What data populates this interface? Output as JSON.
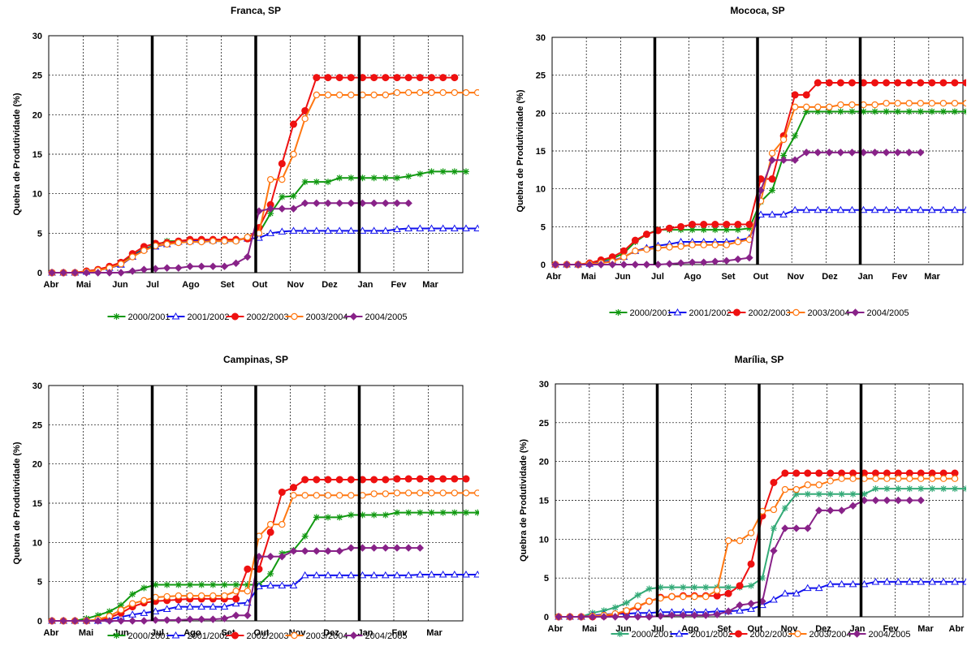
{
  "chart_data": [
    {
      "type": "line",
      "title": "Franca, SP",
      "ylabel": "Quebra de Produtividade (%)",
      "xlabel": "",
      "ylim": [
        0,
        30
      ],
      "yticks": [
        "0",
        "5",
        "10",
        "15",
        "20",
        "25",
        "30"
      ],
      "x_tick_labels": [
        "Abr",
        "Mai",
        "Jun",
        "Jul",
        "Ago",
        "Set",
        "Out",
        "Nov",
        "Dez",
        "Jan",
        "Fev",
        "Mar"
      ],
      "grid": true,
      "legend": "bottom",
      "vlines_month": [
        3,
        6,
        9
      ],
      "series": [
        {
          "name": "2000/2001",
          "color": "#119911",
          "marker": "star",
          "values": [
            0,
            0,
            0,
            0.2,
            0.4,
            0.7,
            1.2,
            2.2,
            3.0,
            3.5,
            4.0,
            4.0,
            4.0,
            4.0,
            4.0,
            4.0,
            4.0,
            4.5,
            5.0,
            7.5,
            9.6,
            9.7,
            11.5,
            11.5,
            11.5,
            12.0,
            12.0,
            12.0,
            12.0,
            12.0,
            12.0,
            12.2,
            12.5,
            12.8,
            12.8,
            12.8,
            12.8
          ]
        },
        {
          "name": "2001/2002",
          "color": "#1111ee",
          "marker": "triangle",
          "values": [
            0,
            0,
            0,
            0.1,
            0.3,
            0.6,
            1.0,
            2.0,
            3.0,
            3.3,
            3.6,
            3.9,
            4.0,
            4.1,
            4.1,
            4.1,
            4.2,
            4.3,
            4.4,
            5.0,
            5.2,
            5.3,
            5.3,
            5.3,
            5.3,
            5.3,
            5.3,
            5.3,
            5.3,
            5.3,
            5.5,
            5.6,
            5.6,
            5.6,
            5.6,
            5.6,
            5.6,
            5.6
          ]
        },
        {
          "name": "2002/2003",
          "color": "#ee1111",
          "marker": "circle",
          "values": [
            0,
            0,
            0,
            0.2,
            0.4,
            0.8,
            1.3,
            2.4,
            3.3,
            3.7,
            3.8,
            4.0,
            4.2,
            4.2,
            4.2,
            4.2,
            4.2,
            4.3,
            5.7,
            8.6,
            13.8,
            18.8,
            20.5,
            24.7,
            24.7,
            24.7,
            24.7,
            24.7,
            24.7,
            24.7,
            24.7,
            24.7,
            24.7,
            24.7,
            24.7,
            24.7
          ]
        },
        {
          "name": "2003/2004",
          "color": "#ff7711",
          "marker": "circle-open",
          "values": [
            0,
            0,
            0,
            0.1,
            0.3,
            0.6,
            1.1,
            2.0,
            2.8,
            3.4,
            3.6,
            3.8,
            3.9,
            3.9,
            4.0,
            4.0,
            4.0,
            4.5,
            5.0,
            11.8,
            11.8,
            15.0,
            19.5,
            22.5,
            22.5,
            22.5,
            22.5,
            22.5,
            22.5,
            22.5,
            22.8,
            22.8,
            22.8,
            22.8,
            22.8,
            22.8,
            22.8,
            22.8
          ]
        },
        {
          "name": "2004/2005",
          "color": "#882288",
          "marker": "diamond",
          "values": [
            0,
            0,
            0,
            0,
            0,
            0,
            0,
            0.2,
            0.4,
            0.5,
            0.6,
            0.6,
            0.8,
            0.8,
            0.8,
            0.8,
            1.2,
            2.0,
            7.8,
            8.1,
            8.1,
            8.1,
            8.8,
            8.8,
            8.8,
            8.8,
            8.8,
            8.8,
            8.8,
            8.8,
            8.8,
            8.8
          ]
        }
      ]
    },
    {
      "type": "line",
      "title": "Mococa, SP",
      "ylabel": "Quebra de Produtividade (%)",
      "xlabel": "",
      "ylim": [
        0,
        30
      ],
      "yticks": [
        "0",
        "5",
        "10",
        "15",
        "20",
        "25",
        "30"
      ],
      "x_tick_labels": [
        "Abr",
        "Mai",
        "Jun",
        "Jul",
        "Ago",
        "Set",
        "Out",
        "Nov",
        "Dez",
        "Jan",
        "Fev",
        "Mar"
      ],
      "grid": true,
      "legend": "bottom",
      "vlines_month": [
        3,
        6,
        9
      ],
      "series": [
        {
          "name": "2000/2001",
          "color": "#119911",
          "marker": "star",
          "values": [
            0,
            0,
            0,
            0.2,
            0.5,
            0.8,
            1.5,
            3.0,
            4.0,
            4.6,
            4.6,
            4.6,
            4.6,
            4.6,
            4.6,
            4.6,
            4.6,
            4.8,
            8.3,
            9.8,
            14.4,
            17.0,
            20.2,
            20.2,
            20.2,
            20.2,
            20.2,
            20.2,
            20.2,
            20.2,
            20.2,
            20.2,
            20.2,
            20.2,
            20.2,
            20.2,
            20.2
          ]
        },
        {
          "name": "2001/2002",
          "color": "#1111ee",
          "marker": "triangle",
          "values": [
            0,
            0,
            0,
            0.1,
            0.3,
            0.5,
            1.0,
            1.8,
            2.2,
            2.5,
            2.7,
            3.0,
            3.0,
            3.0,
            3.0,
            3.0,
            3.2,
            3.5,
            6.6,
            6.6,
            6.6,
            7.2,
            7.2,
            7.2,
            7.2,
            7.2,
            7.2,
            7.2,
            7.2,
            7.2,
            7.2,
            7.2,
            7.2,
            7.2,
            7.2,
            7.2,
            7.2,
            7.2
          ]
        },
        {
          "name": "2002/2003",
          "color": "#ee1111",
          "marker": "circle",
          "values": [
            0,
            0,
            0,
            0.2,
            0.6,
            1.0,
            1.8,
            3.2,
            4.0,
            4.5,
            4.8,
            5.0,
            5.3,
            5.3,
            5.3,
            5.3,
            5.3,
            5.3,
            11.3,
            11.3,
            17.0,
            22.4,
            22.4,
            24.0,
            24.0,
            24.0,
            24.0,
            24.0,
            24.0,
            24.0,
            24.0,
            24.0,
            24.0,
            24.0,
            24.0,
            24.0,
            24.0
          ]
        },
        {
          "name": "2003/2004",
          "color": "#ff7711",
          "marker": "circle-open",
          "values": [
            0,
            0,
            0,
            0.1,
            0.2,
            0.4,
            1.0,
            1.8,
            2.0,
            2.2,
            2.3,
            2.4,
            2.6,
            2.6,
            2.6,
            2.6,
            3.0,
            3.3,
            8.4,
            14.7,
            16.5,
            20.8,
            20.8,
            20.8,
            20.8,
            21.1,
            21.1,
            21.1,
            21.1,
            21.3,
            21.3,
            21.3,
            21.3,
            21.3,
            21.3,
            21.3,
            21.3,
            21.3
          ]
        },
        {
          "name": "2004/2005",
          "color": "#882288",
          "marker": "diamond",
          "values": [
            0,
            0,
            0,
            0,
            0,
            0,
            0,
            0,
            0,
            0,
            0.1,
            0.2,
            0.3,
            0.3,
            0.4,
            0.5,
            0.7,
            0.9,
            9.8,
            13.8,
            13.8,
            13.8,
            14.8,
            14.8,
            14.8,
            14.8,
            14.8,
            14.8,
            14.8,
            14.8,
            14.8,
            14.8,
            14.8
          ]
        }
      ]
    },
    {
      "type": "line",
      "title": "Campinas, SP",
      "ylabel": "Quebra de Produtividade (%)",
      "xlabel": "",
      "ylim": [
        0,
        30
      ],
      "yticks": [
        "0",
        "5",
        "10",
        "15",
        "20",
        "25",
        "30"
      ],
      "x_tick_labels": [
        "Abr",
        "Mai",
        "Jun",
        "Jul",
        "Ago",
        "Set",
        "Out",
        "Nov",
        "Dez",
        "Jan",
        "Fev",
        "Mar"
      ],
      "grid": true,
      "legend": "bottom",
      "vlines_month": [
        3,
        6,
        9
      ],
      "series": [
        {
          "name": "2000/2001",
          "color": "#119911",
          "marker": "star",
          "values": [
            0,
            0,
            0,
            0.3,
            0.7,
            1.2,
            2.0,
            3.4,
            4.2,
            4.6,
            4.6,
            4.6,
            4.6,
            4.6,
            4.6,
            4.6,
            4.6,
            4.6,
            4.6,
            6.0,
            8.6,
            9.0,
            10.8,
            13.2,
            13.2,
            13.2,
            13.5,
            13.5,
            13.5,
            13.5,
            13.8,
            13.8,
            13.8,
            13.8,
            13.8,
            13.8,
            13.8,
            13.8
          ]
        },
        {
          "name": "2001/2002",
          "color": "#1111ee",
          "marker": "triangle",
          "values": [
            0,
            0,
            0,
            0,
            0,
            0.2,
            0.5,
            0.8,
            1.0,
            1.2,
            1.5,
            1.8,
            1.8,
            1.8,
            1.8,
            1.8,
            2.2,
            2.3,
            4.4,
            4.5,
            4.5,
            4.5,
            5.8,
            5.8,
            5.8,
            5.8,
            5.8,
            5.8,
            5.8,
            5.8,
            5.8,
            5.8,
            5.9,
            5.9,
            5.9,
            5.9,
            5.9,
            5.9
          ]
        },
        {
          "name": "2002/2003",
          "color": "#ee1111",
          "marker": "circle",
          "values": [
            0,
            0,
            0,
            0,
            0.1,
            0.4,
            1.0,
            1.8,
            2.3,
            2.5,
            2.6,
            2.7,
            2.8,
            2.8,
            2.8,
            2.8,
            2.8,
            6.6,
            6.6,
            11.3,
            16.4,
            17.0,
            18.0,
            18.0,
            18.0,
            18.0,
            18.0,
            18.0,
            18.0,
            18.0,
            18.1,
            18.1,
            18.1,
            18.1,
            18.1,
            18.1,
            18.1
          ]
        },
        {
          "name": "2003/2004",
          "color": "#ff7711",
          "marker": "circle-open",
          "values": [
            0,
            0,
            0,
            0,
            0.2,
            0.6,
            1.4,
            2.2,
            2.6,
            3.0,
            3.1,
            3.2,
            3.2,
            3.2,
            3.2,
            3.2,
            3.8,
            3.8,
            10.8,
            12.3,
            12.3,
            16.0,
            16.0,
            16.0,
            16.0,
            16.0,
            16.0,
            16.0,
            16.2,
            16.2,
            16.3,
            16.3,
            16.3,
            16.3,
            16.3,
            16.3,
            16.3,
            16.3
          ]
        },
        {
          "name": "2004/2005",
          "color": "#882288",
          "marker": "diamond",
          "values": [
            0,
            0,
            0,
            0,
            0,
            0,
            0,
            0,
            0,
            0.1,
            0.1,
            0.1,
            0.2,
            0.2,
            0.2,
            0.3,
            0.7,
            0.7,
            8.2,
            8.2,
            8.2,
            8.9,
            8.9,
            8.9,
            8.9,
            8.9,
            9.3,
            9.3,
            9.3,
            9.3,
            9.3,
            9.3,
            9.3
          ]
        }
      ]
    },
    {
      "type": "line",
      "title": "Marília, SP",
      "ylabel": "Quebra de Produtividade (%)",
      "xlabel": "",
      "ylim": [
        0,
        30
      ],
      "yticks": [
        "0",
        "5",
        "10",
        "15",
        "20",
        "25",
        "30"
      ],
      "x_tick_labels": [
        "Abr",
        "Mai",
        "Jun",
        "Jul",
        "Ago",
        "Set",
        "Out",
        "Nov",
        "Dez",
        "Jan",
        "Fev",
        "Mar",
        "Abr"
      ],
      "grid": true,
      "legend": "bottom",
      "vlines_month": [
        3,
        6,
        9
      ],
      "series": [
        {
          "name": "2000/2001",
          "color": "#33aa77",
          "marker": "star",
          "values": [
            0,
            0,
            0,
            0.5,
            0.8,
            1.2,
            1.8,
            2.8,
            3.6,
            3.8,
            3.8,
            3.8,
            3.8,
            3.8,
            3.8,
            3.8,
            3.8,
            4.0,
            5.0,
            11.4,
            14.0,
            15.8,
            15.8,
            15.8,
            15.8,
            15.8,
            15.8,
            15.8,
            16.5,
            16.5,
            16.5,
            16.5,
            16.5,
            16.5,
            16.5,
            16.5,
            16.5
          ]
        },
        {
          "name": "2001/2002",
          "color": "#1111ee",
          "marker": "triangle",
          "values": [
            0,
            0,
            0,
            0.2,
            0.3,
            0.4,
            0.4,
            0.5,
            0.5,
            0.6,
            0.6,
            0.6,
            0.6,
            0.6,
            0.7,
            0.7,
            0.8,
            1.0,
            1.5,
            2.2,
            3.0,
            3.0,
            3.7,
            3.7,
            4.2,
            4.2,
            4.2,
            4.2,
            4.5,
            4.5,
            4.5,
            4.5,
            4.5,
            4.5,
            4.5,
            4.5,
            4.5,
            4.5,
            4.5
          ]
        },
        {
          "name": "2002/2003",
          "color": "#ee1111",
          "marker": "circle",
          "values": [
            0,
            0,
            0,
            0,
            0.1,
            0.3,
            0.7,
            1.3,
            2.0,
            2.5,
            2.6,
            2.7,
            2.7,
            2.7,
            2.7,
            3.0,
            4.0,
            6.8,
            13.0,
            17.3,
            18.5,
            18.5,
            18.5,
            18.5,
            18.5,
            18.5,
            18.5,
            18.5,
            18.5,
            18.5,
            18.5,
            18.5,
            18.5,
            18.5,
            18.5,
            18.5
          ]
        },
        {
          "name": "2003/2004",
          "color": "#ff7711",
          "marker": "circle-open",
          "values": [
            0,
            0,
            0,
            0.1,
            0.2,
            0.4,
            0.8,
            1.4,
            2.0,
            2.4,
            2.6,
            2.6,
            2.6,
            2.6,
            3.4,
            9.8,
            9.8,
            10.8,
            13.6,
            13.8,
            16.4,
            16.4,
            17.0,
            17.0,
            17.5,
            17.8,
            17.8,
            17.8,
            17.8,
            17.8,
            17.8,
            17.8,
            17.8,
            17.8,
            17.8,
            17.8
          ]
        },
        {
          "name": "2004/2005",
          "color": "#882288",
          "marker": "diamond",
          "values": [
            0,
            0,
            0,
            0,
            0,
            0,
            0,
            0,
            0,
            0.1,
            0.2,
            0.2,
            0.2,
            0.2,
            0.3,
            0.7,
            1.5,
            1.7,
            2.0,
            8.5,
            11.4,
            11.4,
            11.4,
            13.7,
            13.7,
            13.7,
            14.3,
            15.0,
            15.0,
            15.0,
            15.0,
            15.0,
            15.0
          ]
        }
      ]
    }
  ]
}
